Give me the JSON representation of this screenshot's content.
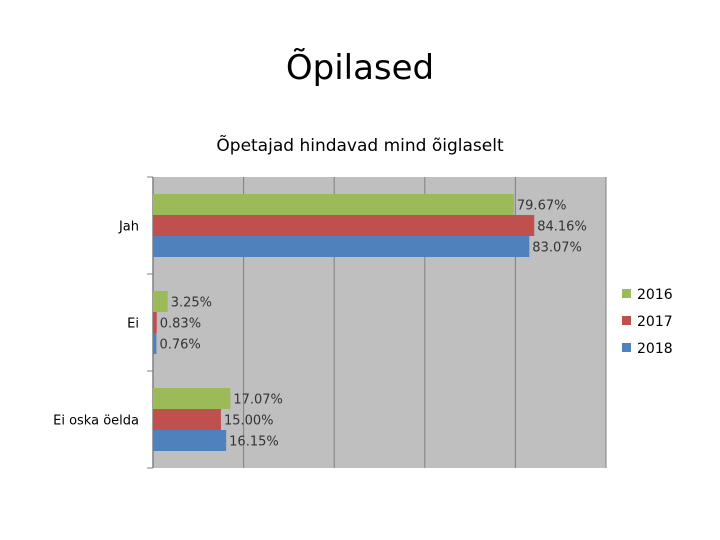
{
  "slide_title": "Õpilased",
  "chart_data": {
    "type": "bar",
    "orientation": "horizontal",
    "title": "Õpetajad hindavad mind õiglaselt",
    "categories": [
      "Jah",
      "Ei",
      "Ei oska öelda"
    ],
    "series": [
      {
        "name": "2016",
        "color": "#9bbb59",
        "values": [
          79.67,
          3.25,
          17.07
        ],
        "labels": [
          "79.67%",
          "3.25%",
          "17.07%"
        ]
      },
      {
        "name": "2017",
        "color": "#c0504d",
        "values": [
          84.16,
          0.83,
          15.0
        ],
        "labels": [
          "84.16%",
          "0.83%",
          "15.00%"
        ]
      },
      {
        "name": "2018",
        "color": "#4f81bd",
        "values": [
          83.07,
          0.76,
          16.15
        ],
        "labels": [
          "83.07%",
          "0.76%",
          "16.15%"
        ]
      }
    ],
    "xlim": [
      0,
      100
    ],
    "grid": true,
    "legend_position": "right"
  }
}
